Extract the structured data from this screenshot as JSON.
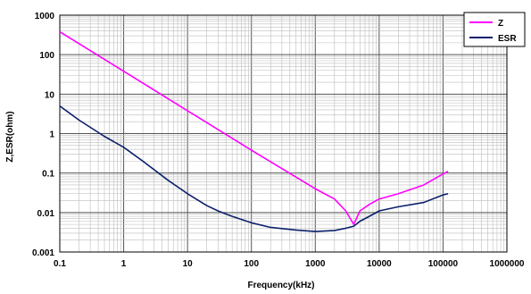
{
  "chart_data": {
    "type": "line",
    "title": "",
    "xlabel": "Frequency(kHz)",
    "ylabel": "Z,ESR(ohm)",
    "x_scale": "log",
    "y_scale": "log",
    "xlim": [
      0.1,
      1000000
    ],
    "ylim": [
      0.001,
      1000
    ],
    "grid": true,
    "legend_position": "top-right",
    "x_ticks": [
      "0.1",
      "1",
      "10",
      "100",
      "1000",
      "10000",
      "100000",
      "1000000"
    ],
    "y_ticks": [
      "1000",
      "100",
      "10",
      "1",
      "0.1",
      "0.01",
      "0.001"
    ],
    "series": [
      {
        "name": "Z",
        "color": "#ff00ff",
        "x": [
          0.1,
          1,
          10,
          100,
          1000,
          2000,
          3000,
          4000,
          5000,
          7000,
          10000,
          20000,
          50000,
          100000,
          120000
        ],
        "y": [
          380,
          38,
          3.8,
          0.38,
          0.04,
          0.022,
          0.011,
          0.005,
          0.011,
          0.016,
          0.022,
          0.03,
          0.05,
          0.095,
          0.11
        ]
      },
      {
        "name": "ESR",
        "color": "#0b1f6b",
        "x": [
          0.1,
          0.2,
          0.5,
          1,
          2,
          5,
          10,
          20,
          30,
          50,
          100,
          200,
          500,
          1000,
          2000,
          3000,
          4000,
          5000,
          7000,
          10000,
          20000,
          50000,
          100000,
          120000
        ],
        "y": [
          5,
          2.2,
          0.85,
          0.45,
          0.2,
          0.065,
          0.03,
          0.015,
          0.011,
          0.008,
          0.0055,
          0.0042,
          0.0036,
          0.0033,
          0.0035,
          0.004,
          0.0045,
          0.006,
          0.008,
          0.011,
          0.014,
          0.018,
          0.028,
          0.03
        ]
      }
    ]
  }
}
